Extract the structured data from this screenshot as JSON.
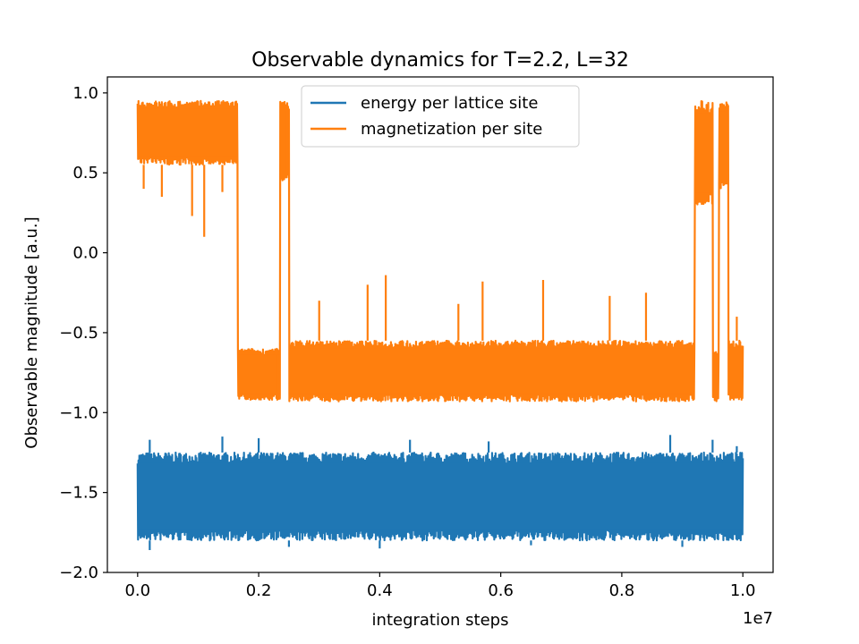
{
  "chart_data": {
    "type": "line",
    "title": "Observable dynamics for T=2.2, L=32",
    "xlabel": "integration steps",
    "ylabel": "Observable magnitude [a.u.]",
    "x_offset_label": "1e7",
    "xlim": [
      -0.05,
      1.05
    ],
    "ylim": [
      -2.0,
      1.1
    ],
    "x_ticks": [
      0.0,
      0.2,
      0.4,
      0.6,
      0.8,
      1.0
    ],
    "x_tick_labels": [
      "0.0",
      "0.2",
      "0.4",
      "0.6",
      "0.8",
      "1.0"
    ],
    "y_ticks": [
      -2.0,
      -1.5,
      -1.0,
      -0.5,
      0.0,
      0.5,
      1.0
    ],
    "y_tick_labels": [
      "−2.0",
      "−1.5",
      "−1.0",
      "−0.5",
      "0.0",
      "0.5",
      "1.0"
    ],
    "grid": false,
    "legend_position": "top-center",
    "series": [
      {
        "name": "energy per lattice site",
        "color": "#1f77b4",
        "x_range": [
          0.0,
          1.0
        ],
        "band": [
          [
            0.0,
            -1.8,
            -1.25
          ],
          [
            1.0,
            -1.8,
            -1.25
          ]
        ],
        "spikes_up": [
          [
            0.02,
            -1.17
          ],
          [
            0.14,
            -1.15
          ],
          [
            0.2,
            -1.16
          ],
          [
            0.45,
            -1.17
          ],
          [
            0.58,
            -1.18
          ],
          [
            0.88,
            -1.14
          ],
          [
            0.95,
            -1.17
          ],
          [
            0.99,
            -1.21
          ]
        ],
        "spikes_down": [
          [
            0.02,
            -1.86
          ],
          [
            0.25,
            -1.84
          ],
          [
            0.4,
            -1.85
          ],
          [
            0.65,
            -1.83
          ],
          [
            0.9,
            -1.84
          ]
        ]
      },
      {
        "name": "magnetization per site",
        "color": "#ff7f0e",
        "x_range": [
          0.0,
          1.0
        ],
        "band": [
          [
            0.0,
            0.55,
            0.95
          ],
          [
            0.16,
            0.55,
            0.95
          ],
          [
            0.165,
            -0.92,
            -0.6
          ],
          [
            0.23,
            -0.92,
            -0.6
          ],
          [
            0.235,
            0.45,
            0.95
          ],
          [
            0.245,
            0.45,
            0.95
          ],
          [
            0.25,
            -0.93,
            -0.55
          ],
          [
            0.918,
            -0.93,
            -0.55
          ],
          [
            0.92,
            0.3,
            0.95
          ],
          [
            0.947,
            0.3,
            0.95
          ],
          [
            0.95,
            -0.93,
            -0.6
          ],
          [
            0.958,
            -0.93,
            -0.6
          ],
          [
            0.96,
            0.4,
            0.95
          ],
          [
            0.973,
            0.4,
            0.95
          ],
          [
            0.976,
            -0.92,
            -0.55
          ],
          [
            1.0,
            -0.92,
            -0.55
          ]
        ],
        "spikes_up": [
          [
            0.3,
            -0.3
          ],
          [
            0.38,
            -0.2
          ],
          [
            0.41,
            -0.14
          ],
          [
            0.53,
            -0.32
          ],
          [
            0.57,
            -0.18
          ],
          [
            0.67,
            -0.17
          ],
          [
            0.78,
            -0.27
          ],
          [
            0.84,
            -0.25
          ],
          [
            0.99,
            -0.4
          ]
        ],
        "spikes_down": [
          [
            0.01,
            0.4
          ],
          [
            0.04,
            0.35
          ],
          [
            0.09,
            0.23
          ],
          [
            0.11,
            0.1
          ],
          [
            0.14,
            0.38
          ]
        ]
      }
    ]
  }
}
